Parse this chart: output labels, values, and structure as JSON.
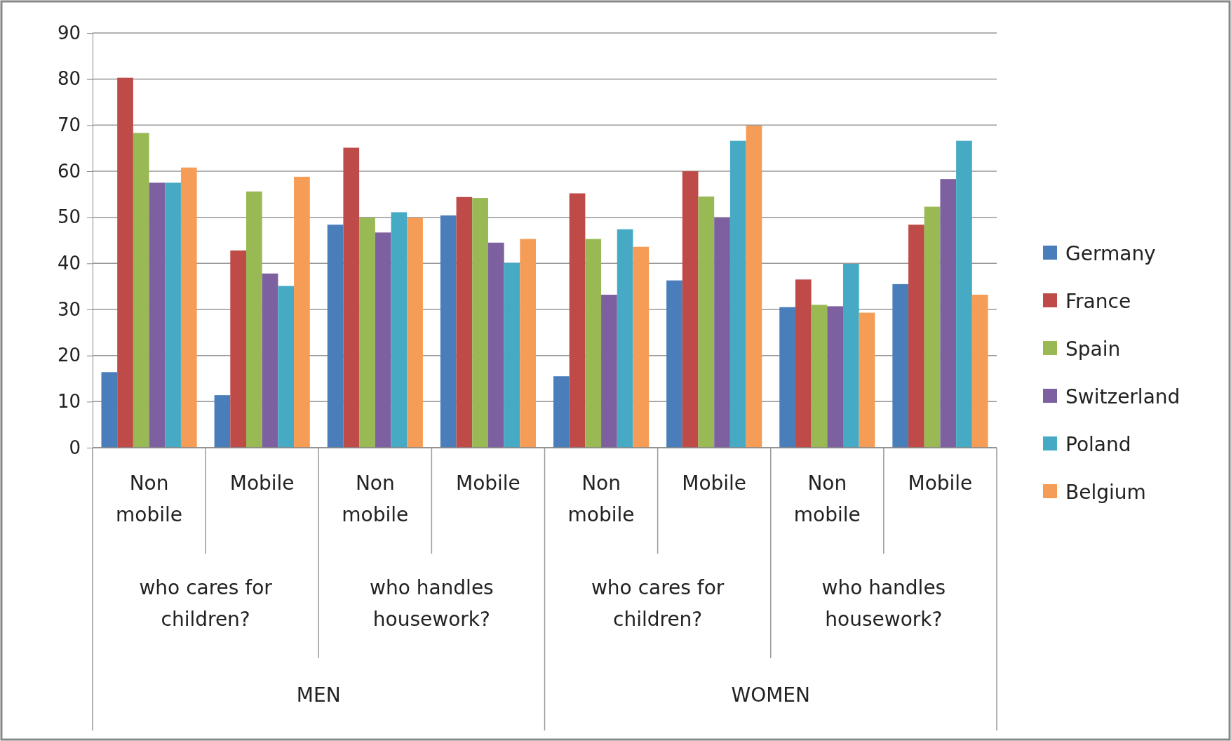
{
  "chart_data": {
    "type": "bar",
    "categories": [
      "Non mobile",
      "Mobile",
      "Non mobile",
      "Mobile",
      "Non mobile",
      "Mobile",
      "Non mobile",
      "Mobile"
    ],
    "series": [
      {
        "name": "Germany",
        "color": "#4a7ebb",
        "values": [
          16.4,
          11.4,
          48.4,
          50.4,
          15.5,
          36.3,
          30.5,
          35.5
        ]
      },
      {
        "name": "France",
        "color": "#be4b48",
        "values": [
          80.3,
          42.8,
          65.1,
          54.4,
          55.2,
          60,
          36.5,
          48.4
        ]
      },
      {
        "name": "Spain",
        "color": "#98b954",
        "values": [
          68.3,
          55.6,
          49.9,
          54.2,
          45.3,
          54.5,
          31,
          52.3
        ]
      },
      {
        "name": "Switzerland",
        "color": "#7d60a0",
        "values": [
          57.5,
          37.8,
          46.7,
          44.5,
          33.2,
          49.9,
          30.7,
          58.3
        ]
      },
      {
        "name": "Poland",
        "color": "#46aac5",
        "values": [
          57.5,
          35.1,
          51.1,
          40.1,
          47.4,
          66.6,
          39.9,
          66.6
        ]
      },
      {
        "name": "Belgium",
        "color": "#f59d56",
        "values": [
          60.8,
          58.8,
          49.9,
          45.3,
          43.6,
          69.9,
          29.3,
          33.2
        ]
      }
    ],
    "annotations": [
      "who cares for children?",
      "who handles housework?",
      "who cares for children?",
      "who handles housework?",
      "MEN",
      "WOMEN"
    ],
    "ylim": [
      0,
      90
    ],
    "yticks": [
      0,
      10,
      20,
      30,
      40,
      50,
      60,
      70,
      80,
      90
    ],
    "grid": "y",
    "legend": "right"
  }
}
